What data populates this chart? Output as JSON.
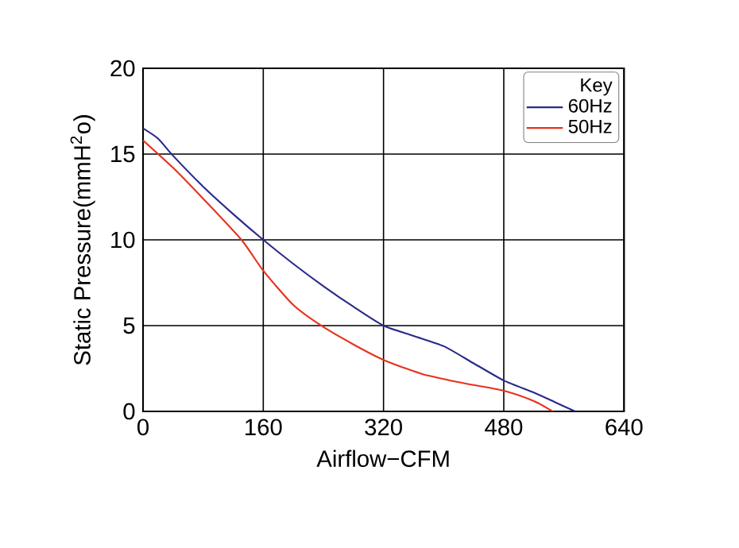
{
  "chart_data": {
    "type": "line",
    "xlabel": "Airflow−CFM",
    "ylabel": "Static Pressure(mmH$^{2}$o)",
    "legend_title": "Key",
    "legend": "top right",
    "grid": true,
    "marker": "none",
    "xlim": [
      0,
      640
    ],
    "ylim": [
      0,
      20
    ],
    "xticks": [
      0,
      160,
      320,
      480,
      640
    ],
    "yticks": [
      0,
      5,
      10,
      15,
      20
    ],
    "series": [
      {
        "name": "60Hz",
        "color": "#2a2a8c",
        "x": [
          0,
          20,
          40,
          80,
          120,
          160,
          200,
          240,
          280,
          320,
          360,
          400,
          440,
          480,
          520,
          550,
          575
        ],
        "values": [
          16.5,
          15.9,
          14.9,
          13.1,
          11.5,
          10,
          8.6,
          7.3,
          6.1,
          5,
          4.4,
          3.8,
          2.8,
          1.8,
          1.1,
          0.5,
          0
        ]
      },
      {
        "name": "50Hz",
        "color": "#e8321e",
        "x": [
          0,
          40,
          80,
          131,
          160,
          200,
          237,
          280,
          320,
          370,
          420,
          480,
          520,
          545
        ],
        "values": [
          15.8,
          14.2,
          12.4,
          10,
          8.2,
          6.2,
          5,
          3.9,
          3,
          2.2,
          1.7,
          1.2,
          0.6,
          0
        ]
      }
    ]
  }
}
